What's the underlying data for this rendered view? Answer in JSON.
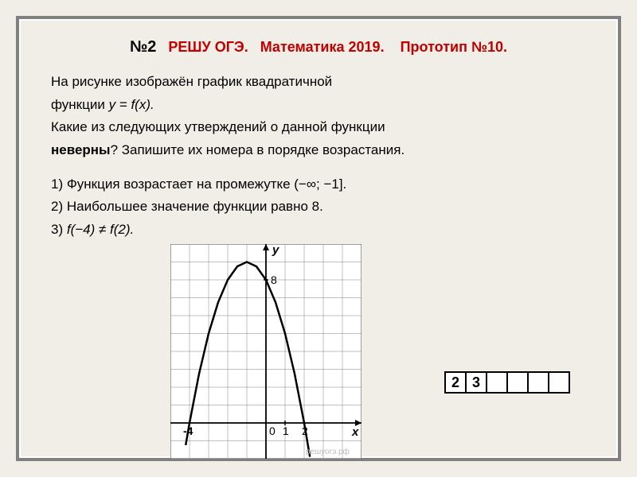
{
  "title": {
    "num": "№2",
    "site": "РЕШУ ОГЭ.",
    "subject": "Математика 2019.",
    "proto": "Прототип №10."
  },
  "problem": {
    "line1a": "На рисунке изображён график квадратичной",
    "line1b_pre": "функции ",
    "line1b_func": "y = f(x).",
    "line2": "Какие из следующих утверждений о данной функции",
    "line3_bold": "неверны",
    "line3_rest": "? Запишите их номера в порядке возрастания.",
    "opt1": "1) Функция возрастает на промежутке (−∞;  −1].",
    "opt2": "2) Наибольшее значение функции равно 8.",
    "opt3_pre": "3) ",
    "opt3_f": "f(−4) ≠ f(2)."
  },
  "chart": {
    "type": "line",
    "grid": {
      "xmin": -5,
      "xmax": 5,
      "ymin": -2,
      "ymax": 10,
      "step": 1
    },
    "axes": {
      "origin_x": 0,
      "origin_y": 0
    },
    "labels": {
      "y_axis": "y",
      "x_axis": "x",
      "y_tick": "8",
      "y_tick_at": 8,
      "x_tick1": "0",
      "x_tick2": "1",
      "x_tick3": "2",
      "x_tick_left": "-4"
    },
    "curve": {
      "comment": "downward parabola, vertex approx (-1, 9), roots at -4 and 2",
      "color": "#000000",
      "width": 2.5,
      "points_x": [
        -4.2,
        -4,
        -3.5,
        -3,
        -2.5,
        -2,
        -1.5,
        -1,
        -0.5,
        0,
        0.5,
        1,
        1.5,
        2,
        2.3
      ],
      "points_y": [
        -1.24,
        0,
        2.75,
        5,
        6.75,
        8,
        8.75,
        9,
        8.75,
        8,
        6.75,
        5,
        2.75,
        0,
        -1.89
      ]
    },
    "background_color": "#ffffff",
    "grid_color": "#808080",
    "axis_color": "#000000",
    "watermark": "решуогэ.рф"
  },
  "answer": [
    "2",
    "3",
    "",
    "",
    "",
    ""
  ]
}
